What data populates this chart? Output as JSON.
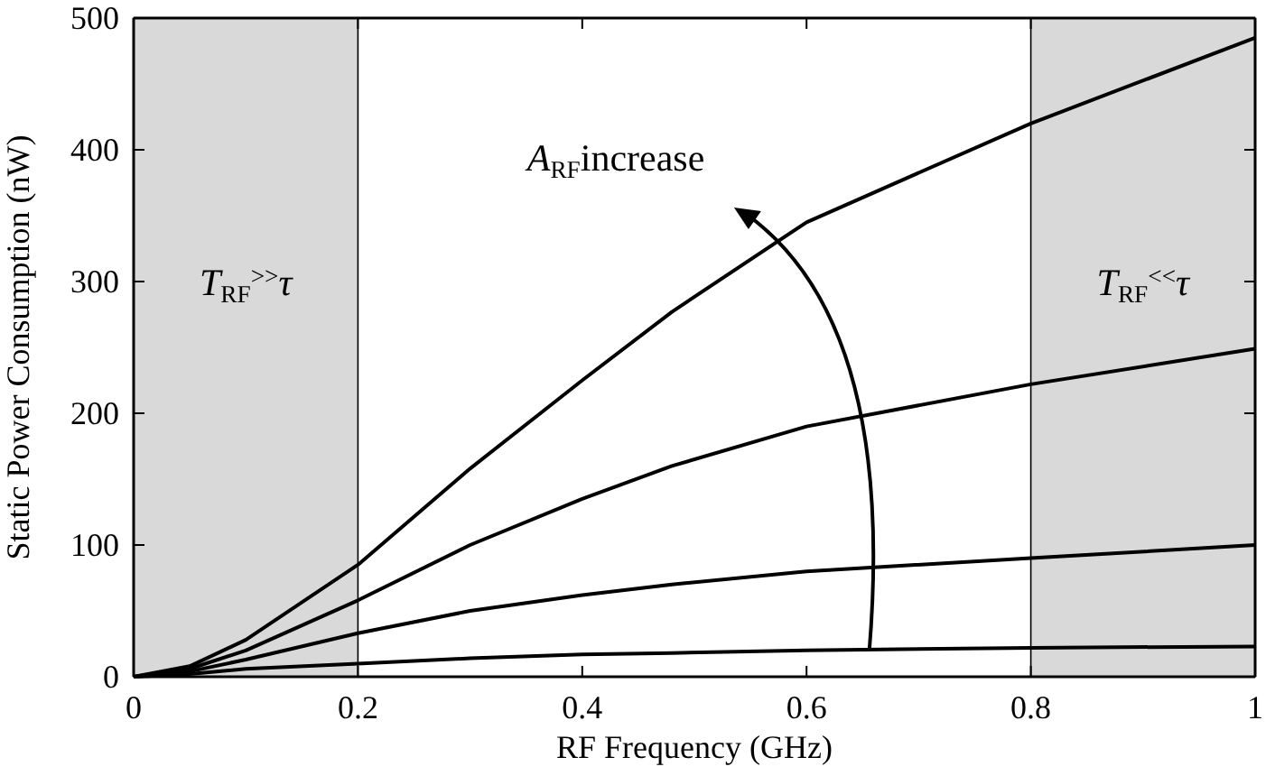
{
  "chart_data": {
    "type": "line",
    "xlabel": "RF Frequency (GHz)",
    "ylabel": "Static Power Consumption (nW)",
    "xlim": [
      0,
      1
    ],
    "ylim": [
      0,
      500
    ],
    "xticks": [
      0,
      0.2,
      0.4,
      0.6,
      0.8,
      1
    ],
    "yticks": [
      0,
      100,
      200,
      300,
      400,
      500
    ],
    "grid": false,
    "x": [
      0,
      0.05,
      0.1,
      0.2,
      0.3,
      0.4,
      0.48,
      0.6,
      0.8,
      1
    ],
    "series": [
      {
        "color": "#000000",
        "values": [
          0,
          8,
          28,
          85,
          158,
          225,
          277,
          345,
          420,
          485
        ]
      },
      {
        "color": "#000000",
        "values": [
          0,
          6,
          20,
          58,
          100,
          135,
          160,
          190,
          222,
          249
        ]
      },
      {
        "color": "#000000",
        "values": [
          0,
          4,
          13,
          33,
          50,
          62,
          70,
          80,
          90,
          100
        ]
      },
      {
        "color": "#000000",
        "values": [
          0,
          2,
          6,
          10,
          14,
          17,
          18,
          20,
          22,
          23
        ]
      }
    ],
    "bands": [
      {
        "axis": "x",
        "from": 0,
        "to": 0.2,
        "label": "T$_{RF}$$^{>>}$τ",
        "color": "#d9d9d9"
      },
      {
        "axis": "x",
        "from": 0.8,
        "to": 1,
        "label": "T$_{RF}$$^{<<}$τ",
        "color": "#d9d9d9"
      }
    ],
    "annotations": [
      "A$_{RF}$increase"
    ]
  }
}
